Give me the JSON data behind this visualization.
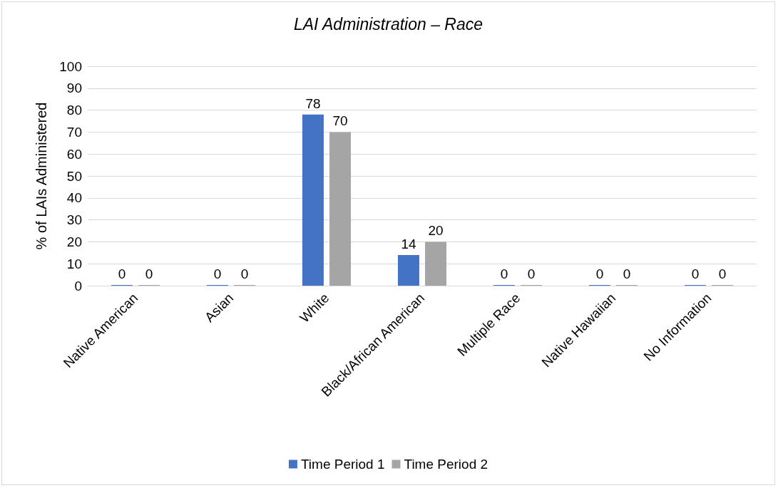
{
  "chart_data": {
    "type": "bar",
    "title": "LAI Administration – Race",
    "ylabel": "% of LAIs Administered",
    "categories": [
      "Native American",
      "Asian",
      "White",
      "Black/African American",
      "Multiple Race",
      "Native Hawaiian",
      "No Information"
    ],
    "series": [
      {
        "name": "Time Period 1",
        "color": "#4472c4",
        "values": [
          0,
          0,
          78,
          14,
          0,
          0,
          0
        ]
      },
      {
        "name": "Time Period 2",
        "color": "#a5a5a5",
        "values": [
          0,
          0,
          70,
          20,
          0,
          0,
          0
        ]
      }
    ],
    "ylim": [
      0,
      100
    ],
    "yticks": [
      0,
      10,
      20,
      30,
      40,
      50,
      60,
      70,
      80,
      90,
      100
    ],
    "grid": "y",
    "legend": "bottom",
    "data_labels": true
  }
}
